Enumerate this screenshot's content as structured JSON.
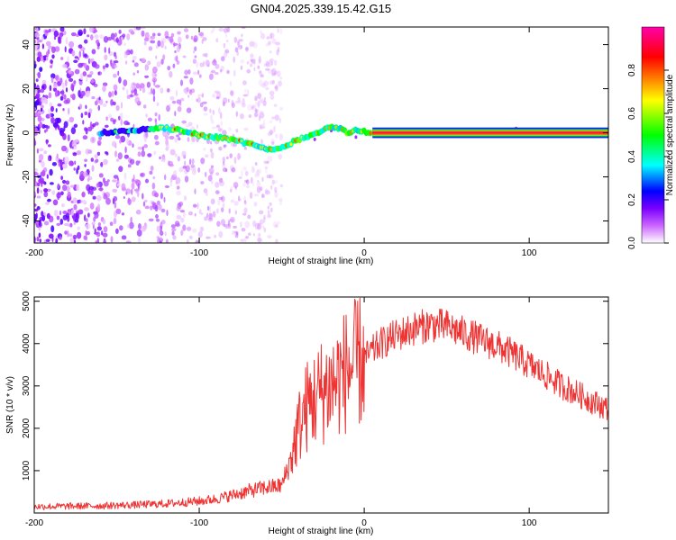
{
  "chart_data": [
    {
      "type": "heatmap",
      "title": "GN04.2025.339.15.42.G15",
      "xlabel": "Height of straight line (km)",
      "ylabel": "Frequency (Hz)",
      "xlim": [
        -200,
        148
      ],
      "ylim": [
        -50,
        48
      ],
      "xticks": [
        -200,
        -100,
        0,
        100
      ],
      "yticks": [
        -40,
        -20,
        0,
        20,
        40
      ],
      "xtick_labels": [
        "-200",
        "-100",
        "0",
        "100"
      ],
      "ytick_labels": [
        "-40",
        "-20",
        "0",
        "20",
        "40"
      ],
      "ridge": {
        "x": [
          -155,
          -140,
          -130,
          -120,
          -110,
          -100,
          -90,
          -80,
          -70,
          -62,
          -55,
          -48,
          -40,
          -35,
          -30,
          -25,
          -20,
          -15,
          -10,
          -5,
          0,
          5,
          148
        ],
        "freq": [
          0,
          1,
          2,
          2,
          1,
          -1,
          -2,
          -3,
          -5,
          -7,
          -8,
          -6,
          -3,
          -2,
          0,
          1,
          3,
          2,
          0,
          1,
          0.5,
          0,
          0
        ]
      },
      "noise_region_km": [
        -200,
        -50
      ],
      "colorbar": {
        "label": "Normalized spectral amplitude",
        "range": [
          0,
          1
        ],
        "ticks": [
          "0.0",
          "0.2",
          "0.4",
          "0.6",
          "0.8"
        ],
        "colormap": [
          "#ffffff",
          "#cc66ff",
          "#7a00ff",
          "#0000ff",
          "#00ffff",
          "#00ff00",
          "#ffff00",
          "#ff8000",
          "#ff0000",
          "#ff00aa"
        ]
      }
    },
    {
      "type": "line",
      "title": "",
      "xlabel": "Height of straight line (km)",
      "ylabel": "SNR (10 * v/v)",
      "xlim": [
        -200,
        148
      ],
      "ylim": [
        0,
        5100
      ],
      "xticks": [
        -200,
        -100,
        0,
        100
      ],
      "yticks": [
        1000,
        2000,
        3000,
        4000,
        5000
      ],
      "xtick_labels": [
        "-200",
        "-100",
        "0",
        "100"
      ],
      "ytick_labels": [
        "1000",
        "2000",
        "3000",
        "4000",
        "5000"
      ],
      "series": [
        {
          "name": "SNR",
          "color": "#ee3333",
          "x": [
            -200,
            -180,
            -160,
            -140,
            -120,
            -100,
            -90,
            -80,
            -70,
            -60,
            -55,
            -50,
            -45,
            -40,
            -35,
            -30,
            -25,
            -20,
            -15,
            -10,
            -5,
            0,
            10,
            20,
            30,
            40,
            50,
            60,
            70,
            80,
            90,
            100,
            110,
            120,
            130,
            140,
            148
          ],
          "y": [
            150,
            160,
            170,
            190,
            220,
            280,
            330,
            420,
            520,
            600,
            620,
            650,
            1200,
            2000,
            2500,
            2700,
            2900,
            3000,
            3200,
            3400,
            3500,
            3650,
            4000,
            4200,
            4350,
            4450,
            4400,
            4250,
            4100,
            3950,
            3750,
            3500,
            3250,
            3000,
            2800,
            2600,
            2450
          ]
        }
      ]
    }
  ]
}
